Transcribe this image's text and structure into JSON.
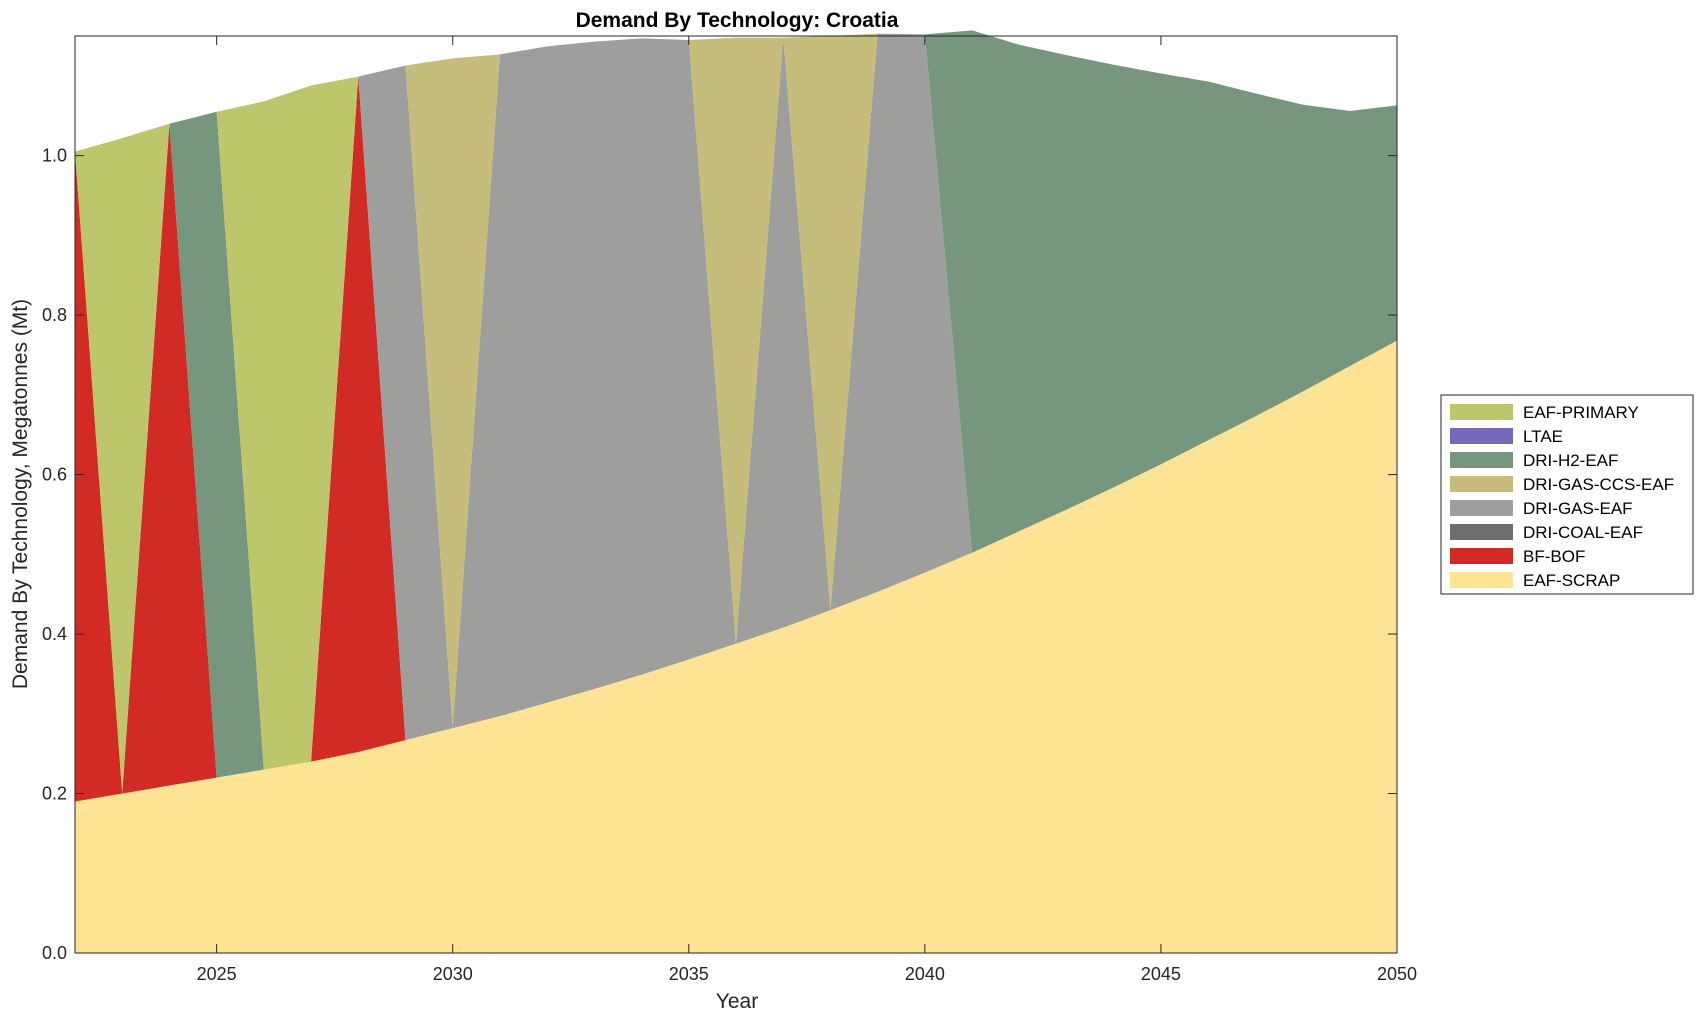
{
  "chart_data": {
    "type": "area",
    "stacked": true,
    "title": "Demand By Technology: Croatia",
    "xlabel": "Year",
    "ylabel": "Demand By Technology, Megatonnes (Mt)",
    "xlim": [
      2022,
      2050
    ],
    "ylim": [
      0,
      1.15
    ],
    "x_ticks": [
      2025,
      2030,
      2035,
      2040,
      2045,
      2050
    ],
    "y_ticks": [
      0.0,
      0.2,
      0.4,
      0.6,
      0.8,
      1.0
    ],
    "y_tick_labels": [
      "0.0",
      "0.2",
      "0.4",
      "0.6",
      "0.8",
      "1.0"
    ],
    "grid": false,
    "legend_position": "right",
    "x": [
      2022,
      2023,
      2024,
      2025,
      2026,
      2027,
      2028,
      2029,
      2030,
      2031,
      2032,
      2033,
      2034,
      2035,
      2036,
      2037,
      2038,
      2039,
      2040,
      2041,
      2042,
      2043,
      2044,
      2045,
      2046,
      2047,
      2048,
      2049,
      2050
    ],
    "series": [
      {
        "name": "EAF-SCRAP",
        "color": "#FDE393",
        "values": [
          0.19,
          0.2,
          0.21,
          0.22,
          0.23,
          0.24,
          0.252,
          0.267,
          0.282,
          0.297,
          0.314,
          0.331,
          0.349,
          0.368,
          0.388,
          0.408,
          0.43,
          0.453,
          0.477,
          0.502,
          0.529,
          0.556,
          0.584,
          0.613,
          0.643,
          0.673,
          0.704,
          0.736,
          0.768
        ]
      },
      {
        "name": "BF-BOF",
        "color": "#D22B26",
        "values": [
          0.815,
          0,
          0.83,
          0,
          0,
          0,
          0.847,
          0,
          0,
          0,
          0,
          0,
          0,
          0,
          0,
          0,
          0,
          0,
          0,
          0,
          0,
          0,
          0,
          0,
          0,
          0,
          0,
          0,
          0
        ]
      },
      {
        "name": "DRI-COAL-EAF",
        "color": "#6E6E6E",
        "values": [
          0,
          0,
          0,
          0,
          0,
          0,
          0,
          0,
          0,
          0,
          0,
          0,
          0,
          0,
          0,
          0,
          0,
          0,
          0,
          0,
          0,
          0,
          0,
          0,
          0,
          0,
          0,
          0,
          0
        ]
      },
      {
        "name": "DRI-GAS-EAF",
        "color": "#9E9E9D",
        "values": [
          0,
          0,
          0,
          0,
          0,
          0,
          0,
          0.846,
          0,
          0.83,
          0.823,
          0.812,
          0.798,
          0.777,
          0,
          0.74,
          0,
          0.7,
          0.675,
          0,
          0,
          0,
          0,
          0,
          0,
          0,
          0,
          0,
          0
        ]
      },
      {
        "name": "DRI-GAS-CCS-EAF",
        "color": "#C6BC7C",
        "values": [
          0,
          0,
          0,
          0,
          0,
          0,
          0,
          0,
          0.84,
          0,
          0,
          0,
          0,
          0,
          0.76,
          0,
          0.72,
          0,
          0,
          0,
          0,
          0,
          0,
          0,
          0,
          0,
          0,
          0,
          0
        ]
      },
      {
        "name": "DRI-H2-EAF",
        "color": "#76977E",
        "values": [
          0,
          0,
          0,
          0.835,
          0,
          0,
          0,
          0,
          0,
          0,
          0,
          0,
          0,
          0,
          0,
          0,
          0,
          0,
          0,
          0.655,
          0.61,
          0.57,
          0.53,
          0.49,
          0.45,
          0.405,
          0.36,
          0.32,
          0.295
        ]
      },
      {
        "name": "LTAE",
        "color": "#7769B8",
        "values": [
          0,
          0,
          0,
          0,
          0,
          0,
          0,
          0,
          0,
          0,
          0,
          0,
          0,
          0,
          0,
          0,
          0,
          0,
          0,
          0,
          0,
          0,
          0,
          0,
          0,
          0,
          0,
          0,
          0
        ]
      },
      {
        "name": "EAF-PRIMARY",
        "color": "#BDC66A",
        "values": [
          0,
          0.822,
          0,
          0,
          0.838,
          0.848,
          0,
          0,
          0,
          0,
          0,
          0,
          0,
          0,
          0,
          0,
          0,
          0,
          0,
          0,
          0,
          0,
          0,
          0,
          0,
          0,
          0,
          0,
          0
        ]
      }
    ],
    "legend_order": [
      "EAF-PRIMARY",
      "LTAE",
      "DRI-H2-EAF",
      "DRI-GAS-CCS-EAF",
      "DRI-GAS-EAF",
      "DRI-COAL-EAF",
      "BF-BOF",
      "EAF-SCRAP"
    ]
  }
}
